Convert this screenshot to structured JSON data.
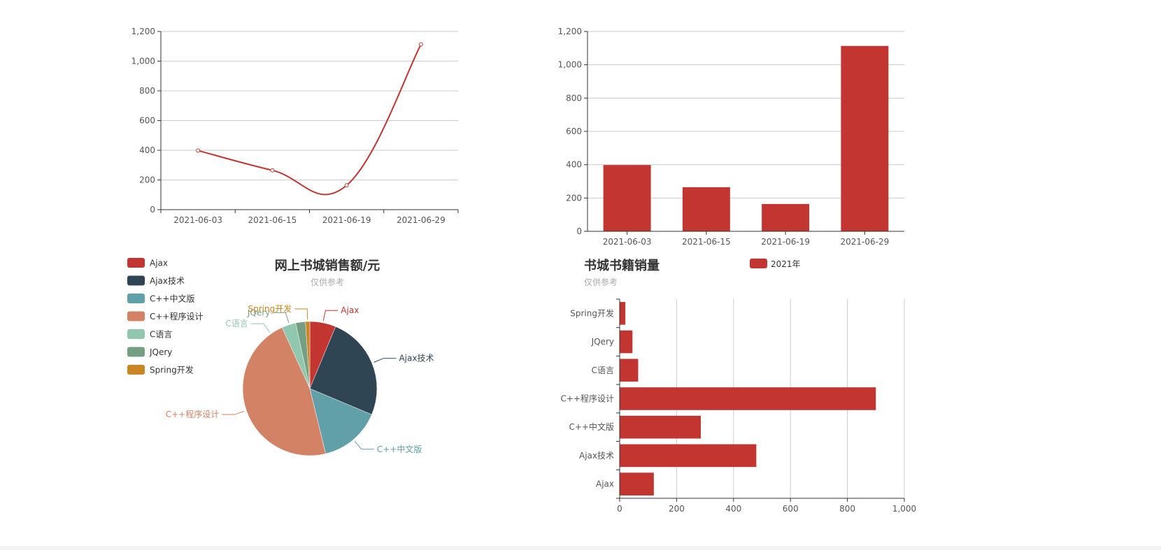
{
  "colors": {
    "primary": "#c23531",
    "axis": "#333333",
    "grid": "#cccccc",
    "label": "#555555",
    "title": "#333333",
    "subtitle": "#aaaaaa",
    "palette": [
      "#c23531",
      "#2f4554",
      "#61a0a8",
      "#d48265",
      "#91c7ae",
      "#749f83",
      "#ca8622"
    ]
  },
  "chart_data": [
    {
      "id": "line-chart",
      "type": "line",
      "smooth": true,
      "categories": [
        "2021-06-03",
        "2021-06-15",
        "2021-06-19",
        "2021-06-29"
      ],
      "values": [
        398,
        265,
        164,
        1113
      ],
      "ylim": [
        0,
        1200
      ],
      "yticks": [
        0,
        200,
        400,
        600,
        800,
        1000,
        1200
      ],
      "ytick_labels": [
        "0",
        "200",
        "400",
        "600",
        "800",
        "1,000",
        "1,200"
      ],
      "grid": "horizontal"
    },
    {
      "id": "bar-chart",
      "type": "bar",
      "categories": [
        "2021-06-03",
        "2021-06-15",
        "2021-06-19",
        "2021-06-29"
      ],
      "values": [
        398,
        265,
        164,
        1113
      ],
      "ylim": [
        0,
        1200
      ],
      "yticks": [
        0,
        200,
        400,
        600,
        800,
        1000,
        1200
      ],
      "ytick_labels": [
        "0",
        "200",
        "400",
        "600",
        "800",
        "1,000",
        "1,200"
      ],
      "grid": "horizontal"
    },
    {
      "id": "pie-chart",
      "type": "pie",
      "title": "网上书城销售额/元",
      "subtitle": "仅供参考",
      "legend_position": "top-left",
      "labels": [
        "Ajax",
        "Ajax技术",
        "C++中文版",
        "C++程序设计",
        "C语言",
        "JQery",
        "Spring开发"
      ],
      "values": [
        120,
        480,
        285,
        900,
        65,
        45,
        20
      ]
    },
    {
      "id": "hbar-chart",
      "type": "bar",
      "orientation": "horizontal",
      "title": "书城书籍销量",
      "subtitle": "仅供参考",
      "legend": [
        "2021年"
      ],
      "categories": [
        "Ajax",
        "Ajax技术",
        "C++中文版",
        "C++程序设计",
        "C语言",
        "JQery",
        "Spring开发"
      ],
      "values": [
        120,
        480,
        285,
        900,
        65,
        45,
        20
      ],
      "xlim": [
        0,
        1000
      ],
      "xticks": [
        0,
        200,
        400,
        600,
        800,
        1000
      ],
      "xtick_labels": [
        "0",
        "200",
        "400",
        "600",
        "800",
        "1,000"
      ],
      "grid": "vertical"
    }
  ]
}
